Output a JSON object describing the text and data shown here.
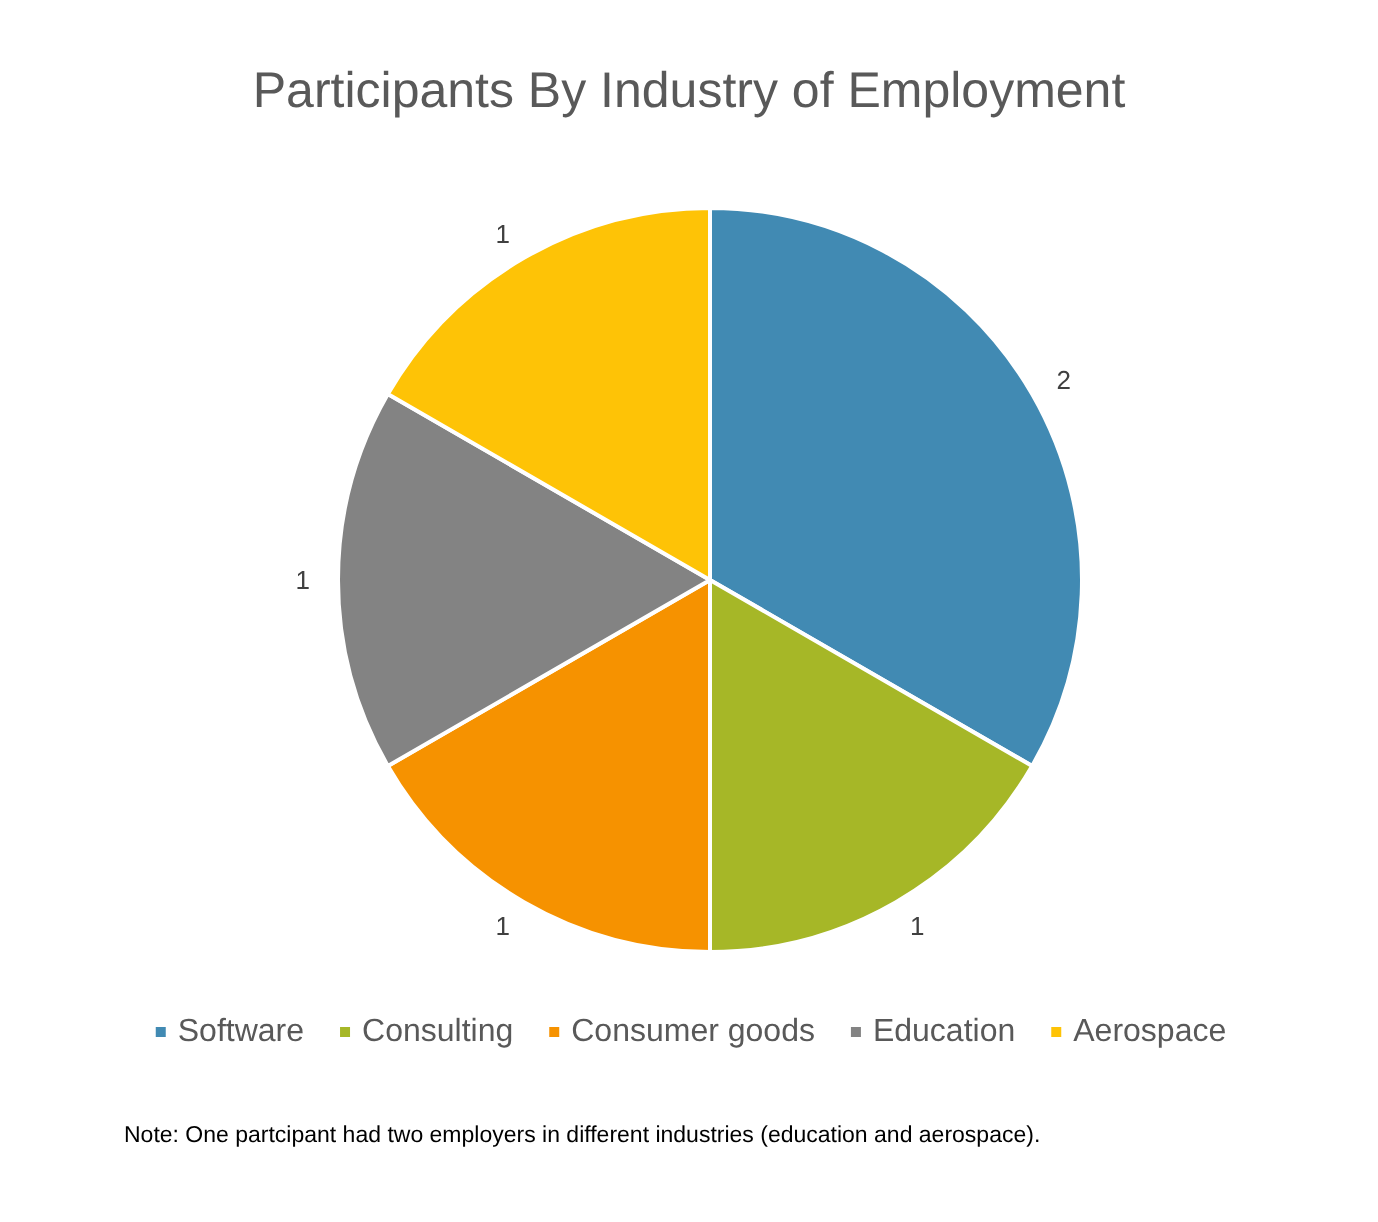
{
  "chart_data": {
    "type": "pie",
    "title": "Participants By Industry of Employment",
    "categories": [
      "Software",
      "Consulting",
      "Consumer goods",
      "Education",
      "Aerospace"
    ],
    "values": [
      2,
      1,
      1,
      1,
      1
    ],
    "colors": [
      "#418ab3",
      "#a6b727",
      "#f69200",
      "#838383",
      "#fec306"
    ],
    "data_labels": true,
    "legend": "bottom",
    "annotations": [
      "Note: One partcipant had two employers in different industries (education and aerospace)."
    ]
  }
}
